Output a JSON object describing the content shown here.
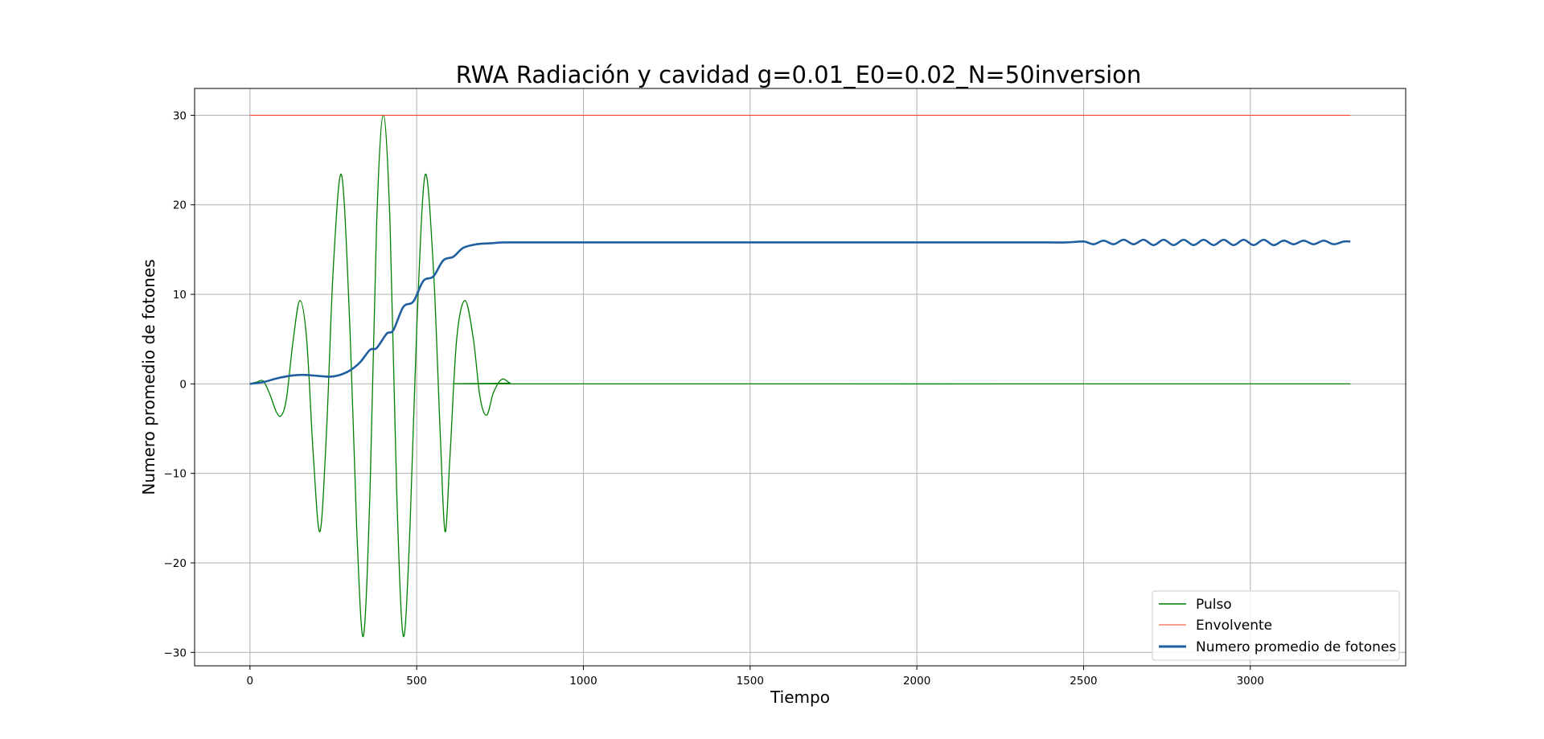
{
  "chart_data": {
    "type": "line",
    "title": "RWA Radiación y cavidad g=0.01_E0=0.02_N=50inversion",
    "xlabel": "Tiempo",
    "ylabel": "Numero promedio de fotones",
    "xlim": [
      -166,
      3466
    ],
    "ylim": [
      -31.5,
      33.0
    ],
    "xticks": [
      0,
      500,
      1000,
      1500,
      2000,
      2500,
      3000
    ],
    "yticks": [
      -30,
      -20,
      -10,
      0,
      10,
      20,
      30
    ],
    "xtick_labels": [
      "0",
      "500",
      "1000",
      "1500",
      "2000",
      "2500",
      "3000"
    ],
    "ytick_labels": [
      "−30",
      "−20",
      "−10",
      "0",
      "10",
      "20",
      "30"
    ],
    "grid": true,
    "legend_position": "lower right",
    "series": [
      {
        "name": "Pulso",
        "color": "#008000",
        "x": [
          0,
          20,
          40,
          60,
          80,
          95,
          110,
          130,
          150,
          170,
          190,
          210,
          230,
          250,
          275,
          300,
          320,
          340,
          360,
          380,
          400,
          420,
          440,
          460,
          480,
          500,
          525,
          550,
          570,
          585,
          600,
          620,
          645,
          670,
          690,
          710,
          730,
          755,
          780,
          800,
          3300
        ],
        "y": [
          0,
          0.2,
          0.3,
          -1.2,
          -3.2,
          -3.5,
          -1.5,
          5.0,
          9.3,
          5.0,
          -8.0,
          -16.5,
          -5.0,
          13.0,
          23.3,
          6.0,
          -16.0,
          -28.2,
          -12.0,
          18.0,
          30.0,
          18.0,
          -12.0,
          -28.2,
          -16.0,
          6.0,
          23.3,
          13.0,
          -5.0,
          -16.5,
          -8.0,
          5.0,
          9.3,
          5.0,
          -1.5,
          -3.5,
          -1.0,
          0.5,
          0.1,
          0,
          0
        ]
      },
      {
        "name": "Envolvente",
        "color": "#ff3b1f",
        "x": [
          0,
          3300
        ],
        "y": [
          30,
          30
        ]
      },
      {
        "name": "Numero promedio de fotones",
        "color": "#1f5fa0",
        "x": [
          0,
          40,
          80,
          120,
          160,
          200,
          240,
          270,
          300,
          330,
          360,
          380,
          410,
          430,
          460,
          490,
          520,
          550,
          580,
          610,
          640,
          680,
          720,
          760,
          800,
          1000,
          1500,
          2000,
          2300,
          2400,
          2450,
          2500,
          2530,
          2560,
          2590,
          2620,
          2650,
          2680,
          2710,
          2740,
          2770,
          2800,
          2830,
          2860,
          2890,
          2920,
          2950,
          2980,
          3010,
          3040,
          3070,
          3100,
          3130,
          3160,
          3190,
          3220,
          3250,
          3280,
          3300
        ],
        "y": [
          0,
          0.2,
          0.6,
          0.9,
          1.0,
          0.9,
          0.8,
          1.0,
          1.5,
          2.4,
          3.8,
          4.0,
          5.6,
          6.0,
          8.6,
          9.2,
          11.5,
          12.0,
          13.8,
          14.2,
          15.2,
          15.6,
          15.7,
          15.8,
          15.8,
          15.8,
          15.8,
          15.8,
          15.8,
          15.8,
          15.8,
          15.9,
          15.6,
          16.0,
          15.6,
          16.1,
          15.6,
          16.1,
          15.5,
          16.1,
          15.5,
          16.1,
          15.5,
          16.1,
          15.5,
          16.1,
          15.5,
          16.1,
          15.5,
          16.1,
          15.5,
          16.0,
          15.6,
          16.0,
          15.6,
          16.0,
          15.6,
          15.9,
          15.9
        ]
      }
    ]
  }
}
